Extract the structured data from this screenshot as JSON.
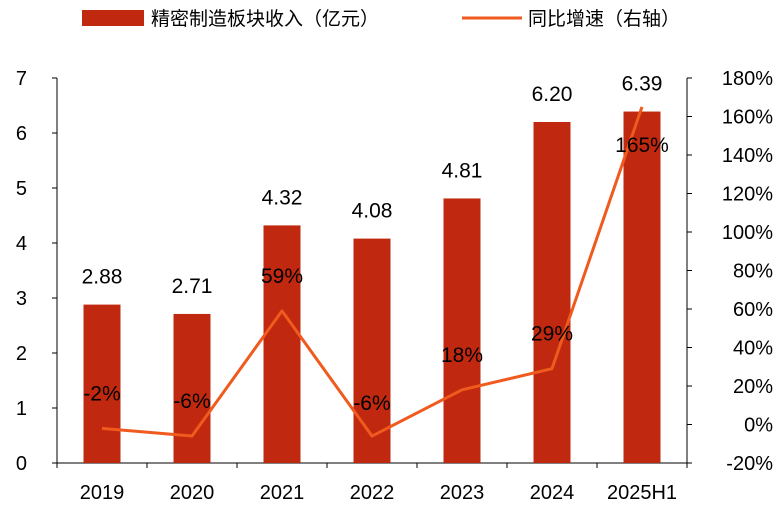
{
  "chart_data": {
    "type": "bar",
    "categories": [
      "2019",
      "2020",
      "2021",
      "2022",
      "2023",
      "2024",
      "2025H1"
    ],
    "series": [
      {
        "name": "精密制造板块收入（亿元）",
        "type": "bar",
        "axis": "left",
        "values": [
          2.88,
          2.71,
          4.32,
          4.08,
          4.81,
          6.2,
          6.39
        ],
        "labels": [
          "2.88",
          "2.71",
          "4.32",
          "4.08",
          "4.81",
          "6.20",
          "6.39"
        ],
        "color": "#C0280F"
      },
      {
        "name": "同比增速（右轴）",
        "type": "line",
        "axis": "right",
        "values": [
          -2,
          -6,
          59,
          -6,
          18,
          29,
          165
        ],
        "labels": [
          "-2%",
          "-6%",
          "59%",
          "-6%",
          "18%",
          "29%",
          "165%"
        ],
        "color": "#F05A1E"
      }
    ],
    "y_left": {
      "lim": [
        0,
        7
      ],
      "ticks": [
        "0",
        "1",
        "2",
        "3",
        "4",
        "5",
        "6",
        "7"
      ]
    },
    "y_right": {
      "lim": [
        -20,
        180
      ],
      "ticks": [
        "-20%",
        "0%",
        "20%",
        "40%",
        "60%",
        "80%",
        "100%",
        "120%",
        "140%",
        "160%",
        "180%"
      ]
    },
    "grid": false,
    "legend_position": "top"
  }
}
